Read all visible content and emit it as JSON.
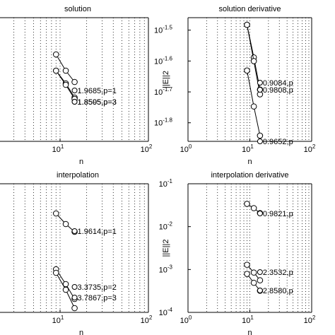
{
  "chart_data": [
    {
      "type": "line",
      "title": "solution",
      "xlabel": "n",
      "ylabel": "",
      "xscale": "log",
      "yscale": "log",
      "xlim": [
        1,
        100
      ],
      "xtick_labels": [
        {
          "base": "10",
          "exp": "1"
        },
        {
          "base": "10",
          "exp": "2"
        }
      ],
      "ytick_labels": [],
      "grid": "vertical dotted",
      "annotations": [
        {
          "text": "1.9685,p=1",
          "x": 14.6
        },
        {
          "text": "1.8595,p=3",
          "x": 14.6
        },
        {
          "text": "1.8505,p=3",
          "x": 14.6
        }
      ],
      "series": [
        {
          "x": [
            9,
            11.6,
            14.6
          ],
          "y": [
            4.1,
            3.05,
            2.55
          ]
        },
        {
          "x": [
            9,
            11.6,
            14.6
          ],
          "y": [
            3.05,
            2.3,
            1.85
          ]
        },
        {
          "x": [
            9,
            11.6,
            14.6
          ],
          "y": [
            3.05,
            2.25,
            1.82
          ]
        }
      ]
    },
    {
      "type": "line",
      "title": "solution derivative",
      "xlabel": "n",
      "ylabel": "||E||2",
      "xscale": "log",
      "yscale": "log",
      "xlim": [
        1,
        100
      ],
      "ylim": [
        0.0138,
        0.0347
      ],
      "xtick_labels": [
        {
          "base": "10",
          "exp": "0"
        },
        {
          "base": "10",
          "exp": "1"
        },
        {
          "base": "10",
          "exp": "2"
        }
      ],
      "ytick_labels": [
        {
          "base": "10",
          "exp": "-1.5",
          "value": 0.03162
        },
        {
          "base": "10",
          "exp": "-1.6",
          "value": 0.02512
        },
        {
          "base": "10",
          "exp": "-1.7",
          "value": 0.01995
        },
        {
          "base": "10",
          "exp": "-1.8",
          "value": 0.01585
        }
      ],
      "grid": "vertical dotted",
      "annotations": [
        {
          "text": "0.9084,p",
          "x": 14.6
        },
        {
          "text": "0.9808,p",
          "x": 14.6
        },
        {
          "text": "0.9652,p",
          "x": 14.6
        }
      ],
      "series": [
        {
          "x": [
            9,
            11.6,
            14.6
          ],
          "y": [
            0.0329,
            0.0258,
            0.0203
          ]
        },
        {
          "x": [
            9,
            11.6,
            14.6
          ],
          "y": [
            0.0329,
            0.0251,
            0.0196
          ]
        },
        {
          "x": [
            9,
            11.6,
            14.6
          ],
          "y": [
            0.0234,
            0.0179,
            0.0144
          ]
        }
      ]
    },
    {
      "type": "line",
      "title": "interpolation",
      "xlabel": "n",
      "ylabel": "",
      "xscale": "log",
      "yscale": "log",
      "xlim": [
        1,
        100
      ],
      "xtick_labels": [
        {
          "base": "10",
          "exp": "1"
        },
        {
          "base": "10",
          "exp": "2"
        }
      ],
      "ytick_labels": [],
      "grid": "vertical dotted",
      "annotations": [
        {
          "text": "1.9614,p=1",
          "x": 14.6
        },
        {
          "text": "3.3735,p=2",
          "x": 14.6
        },
        {
          "text": "3.7867,p=3",
          "x": 14.6
        }
      ],
      "series": [
        {
          "x": [
            9,
            11.6,
            14.6
          ],
          "y": [
            22,
            17,
            13.4
          ]
        },
        {
          "x": [
            9,
            11.6,
            14.6
          ],
          "y": [
            3.3,
            2.1,
            1.45
          ]
        },
        {
          "x": [
            9,
            11.6,
            14.6
          ],
          "y": [
            2.9,
            1.75,
            1.15
          ]
        }
      ]
    },
    {
      "type": "line",
      "title": "interpolation derivative",
      "xlabel": "n",
      "ylabel": "||E||2",
      "xscale": "log",
      "yscale": "log",
      "xlim": [
        1,
        100
      ],
      "ylim": [
        0.0001,
        0.1
      ],
      "xtick_labels": [
        {
          "base": "10",
          "exp": "0"
        },
        {
          "base": "10",
          "exp": "1"
        },
        {
          "base": "10",
          "exp": "2"
        }
      ],
      "ytick_labels": [
        {
          "base": "10",
          "exp": "-1",
          "value": 0.1
        },
        {
          "base": "10",
          "exp": "-2",
          "value": 0.01
        },
        {
          "base": "10",
          "exp": "-3",
          "value": 0.001
        },
        {
          "base": "10",
          "exp": "-4",
          "value": 0.0001
        }
      ],
      "grid": "vertical dotted",
      "annotations": [
        {
          "text": "0.9821,p",
          "x": 14.6
        },
        {
          "text": "2.3532,p",
          "x": 14.6
        },
        {
          "text": "2.8580,p",
          "x": 14.6
        }
      ],
      "series": [
        {
          "x": [
            9,
            11.6,
            14.6
          ],
          "y": [
            0.034,
            0.027,
            0.0207
          ]
        },
        {
          "x": [
            9,
            11.6,
            14.6
          ],
          "y": [
            0.00129,
            0.00085,
            0.00056
          ]
        },
        {
          "x": [
            9,
            11.6,
            14.6
          ],
          "y": [
            0.00079,
            0.00049,
            0.00032
          ]
        }
      ]
    }
  ]
}
